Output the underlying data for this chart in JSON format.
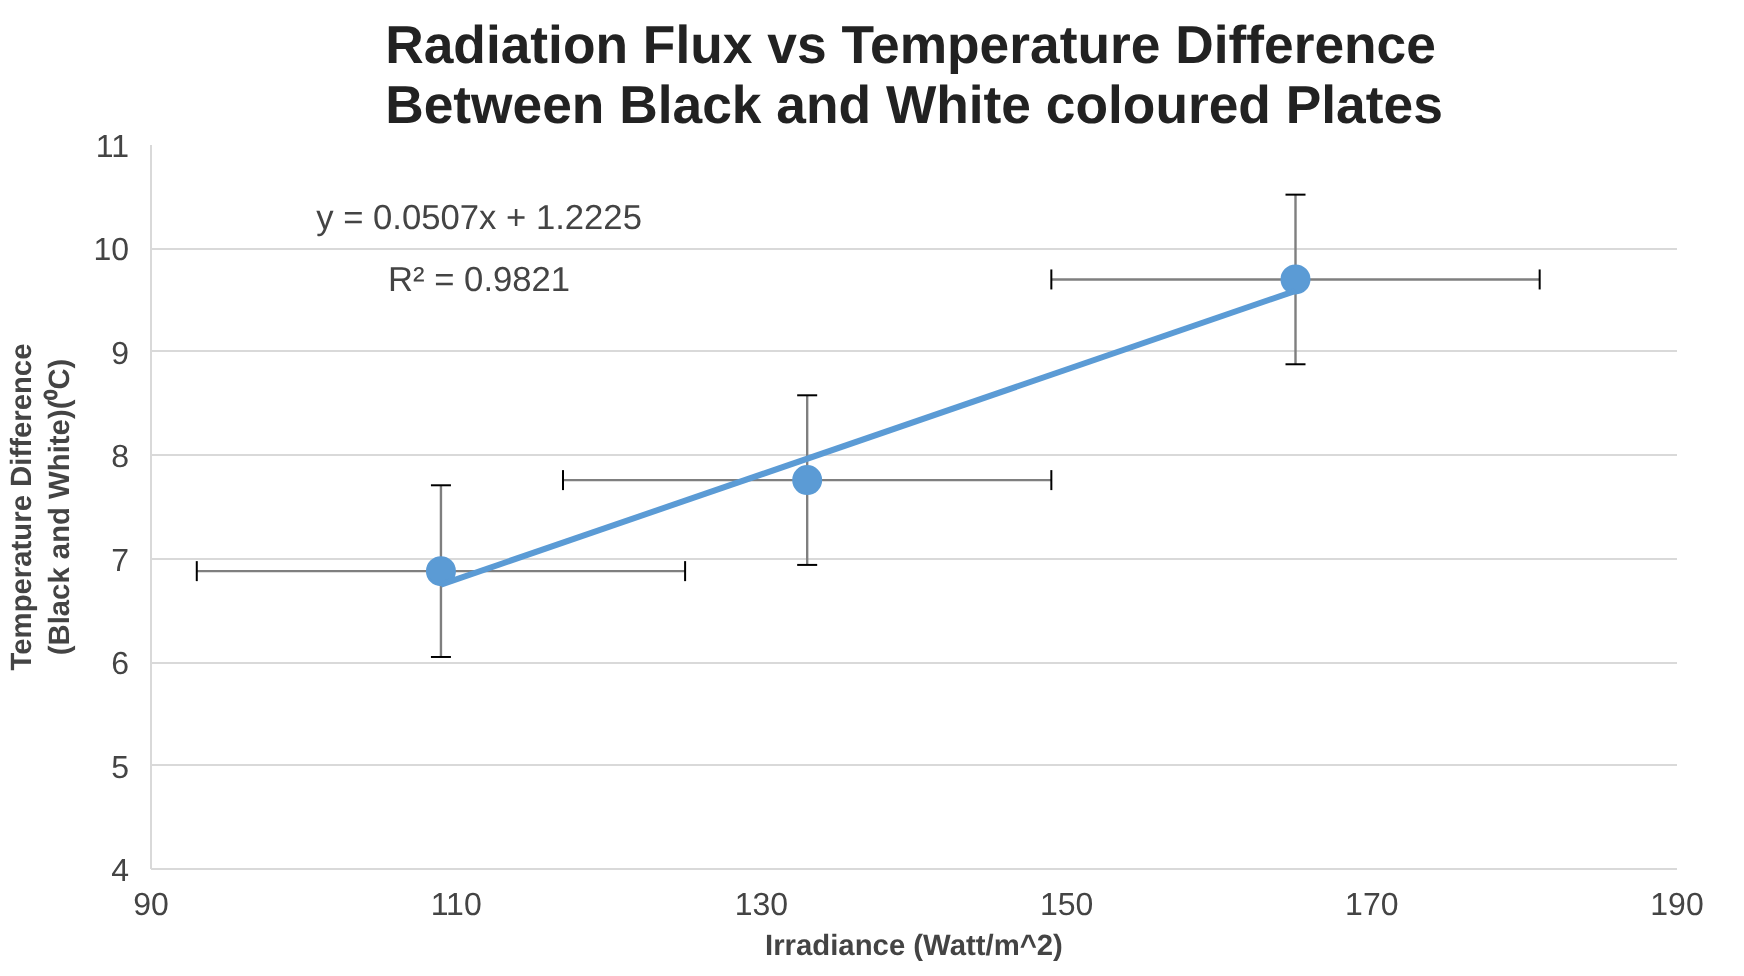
{
  "chart_data": {
    "type": "scatter",
    "title": "Radiation Flux vs Temperature Difference\nBetween Black and White coloured Plates",
    "xlabel": "Irradiance (Watt/m^2)",
    "ylabel": "Temperature Difference\n(Black and White)(⁰C)",
    "xlim": [
      90,
      190
    ],
    "xticks": [
      90,
      110,
      130,
      150,
      170,
      190
    ],
    "ylim": [
      4,
      11
    ],
    "yticks": [
      4,
      5,
      6,
      7,
      8,
      9,
      10,
      11
    ],
    "grid": "y",
    "annotations": [
      "y = 0.0507x + 1.2225",
      "R² = 0.9821"
    ],
    "series": [
      {
        "marker": "circle",
        "color": "#5b9bd5",
        "x": [
          109,
          133,
          165
        ],
        "values": [
          6.88,
          7.76,
          9.7
        ],
        "errors": [
          0.83,
          0.82,
          0.82
        ],
        "xerrors": [
          16,
          16,
          16
        ]
      },
      {
        "type": "line",
        "color": "#5b9bd5",
        "x": [
          109,
          165
        ],
        "values": [
          6.75,
          9.59
        ]
      }
    ]
  }
}
